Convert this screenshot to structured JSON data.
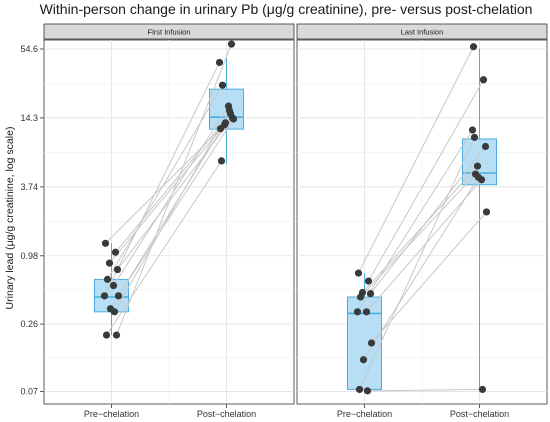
{
  "chart_data": {
    "type": "boxplot",
    "title": "Within-person change in urinary Pb (μg/g creatinine), pre- versus post-chelation",
    "ylabel": "Urinary lead (μg/g creatinine, log scale)",
    "xlabel": "",
    "y_scale": "log",
    "y_ticks": [
      0.07,
      0.26,
      0.98,
      3.74,
      14.3,
      54.6
    ],
    "y_tick_labels": [
      "0.07",
      "0.26",
      "0.98",
      "3.74",
      "14.3",
      "54.6"
    ],
    "ylim": [
      0.055,
      65
    ],
    "grid": true,
    "colors": {
      "box_fill": "#a9d8f2",
      "box_stroke": "#4aaee0",
      "point": "#3a3a3a",
      "line": "#c8c8c8",
      "strip": "#d9d9d9"
    },
    "panels": [
      {
        "strip": "First Infusion",
        "categories": [
          "Pre−chelation",
          "Post−chelation"
        ],
        "boxes": [
          {
            "whisker_low": 0.21,
            "q1": 0.33,
            "median": 0.44,
            "q3": 0.62,
            "whisker_high": 1.25
          },
          {
            "whisker_low": 5.8,
            "q1": 11.5,
            "median": 14.5,
            "q3": 25.0,
            "whisker_high": 46.0
          }
        ],
        "pairs": [
          [
            1.25,
            11.6
          ],
          [
            1.05,
            15.5
          ],
          [
            0.85,
            12.5
          ],
          [
            0.75,
            14.3
          ],
          [
            0.62,
            27.0
          ],
          [
            0.55,
            18.0
          ],
          [
            0.45,
            42.0
          ],
          [
            0.45,
            14.0
          ],
          [
            0.35,
            13.0
          ],
          [
            0.33,
            16.5
          ],
          [
            0.21,
            6.2
          ],
          [
            0.21,
            60.0
          ]
        ]
      },
      {
        "strip": "Last Infusion",
        "categories": [
          "Pre−chelation",
          "Post−chelation"
        ],
        "boxes": [
          {
            "whisker_low": 0.07,
            "q1": 0.073,
            "median": 0.32,
            "q3": 0.44,
            "whisker_high": 0.7
          },
          {
            "whisker_low": 0.075,
            "q1": 3.9,
            "median": 4.9,
            "q3": 9.5,
            "whisker_high": 55.0
          }
        ],
        "pairs": [
          [
            0.7,
            57.0
          ],
          [
            0.6,
            30.0
          ],
          [
            0.48,
            5.6
          ],
          [
            0.47,
            8.2
          ],
          [
            0.44,
            4.8
          ],
          [
            0.33,
            4.3
          ],
          [
            0.33,
            11.3
          ],
          [
            0.18,
            2.3
          ],
          [
            0.13,
            4.5
          ],
          [
            0.071,
            0.073
          ],
          [
            0.073,
            9.8
          ]
        ]
      }
    ]
  }
}
